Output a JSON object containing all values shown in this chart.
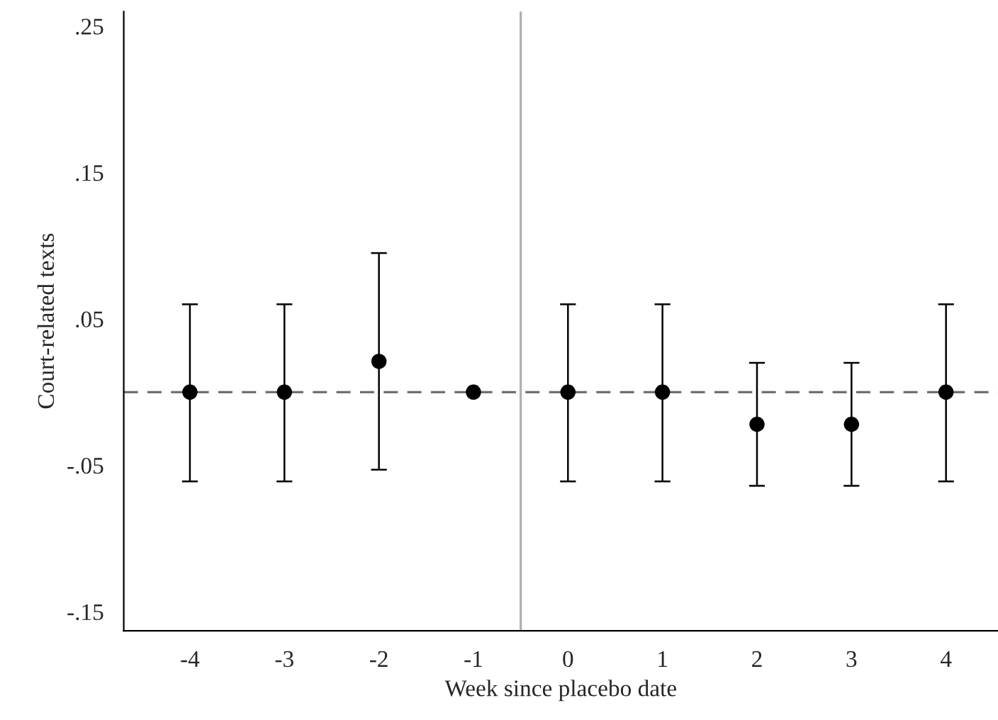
{
  "chart_data": {
    "type": "scatter",
    "xlabel": "Week since placebo date",
    "ylabel": "Court-related texts",
    "x": [
      -4,
      -3,
      -2,
      -1,
      0,
      1,
      2,
      3,
      4
    ],
    "series": [
      {
        "color": "#000000",
        "values": [
          0,
          0,
          0.021,
          0,
          0,
          0,
          -0.022,
          -0.022,
          0
        ],
        "errors": [
          [
            -0.061,
            0.06
          ],
          [
            -0.061,
            0.06
          ],
          [
            -0.053,
            0.095
          ],
          null,
          [
            -0.061,
            0.06
          ],
          [
            -0.061,
            0.06
          ],
          [
            -0.064,
            0.02
          ],
          [
            -0.064,
            0.02
          ],
          [
            -0.061,
            0.06
          ]
        ]
      }
    ],
    "xlim": [
      -4.7,
      4.55
    ],
    "xticks": [
      -4,
      -3,
      -2,
      -1,
      0,
      1,
      2,
      3,
      4
    ],
    "ylim": [
      -0.163,
      0.26
    ],
    "yticks": [
      {
        "value": -0.15,
        "label": "-.15"
      },
      {
        "value": -0.05,
        "label": "-.05"
      },
      {
        "value": 0.05,
        "label": ".05"
      },
      {
        "value": 0.15,
        "label": ".15"
      },
      {
        "value": 0.25,
        "label": ".25"
      }
    ],
    "ref_lines": [
      {
        "axis": "y",
        "value": 0,
        "color": "#707070",
        "line_style": "dashed"
      },
      {
        "axis": "x",
        "value": -0.5,
        "color": "#b0b0b0",
        "line_style": "solid"
      }
    ],
    "marker": "circle",
    "grid": false,
    "legend": false
  }
}
